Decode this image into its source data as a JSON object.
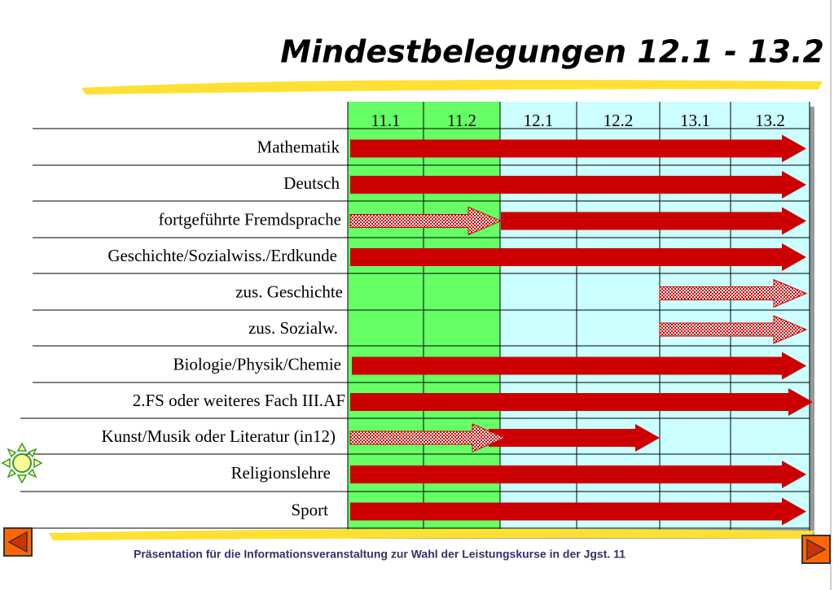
{
  "title": "Mindestbelegungen 12.1 - 13.2",
  "columns": [
    "11.1",
    "11.2",
    "12.1",
    "12.2",
    "13.1",
    "13.2"
  ],
  "rows": [
    "Mathematik",
    "Deutsch",
    "fortgeführte Fremdsprache",
    "Geschichte/Sozialwiss./Erdkunde",
    "zus. Geschichte",
    "zus. Sozialw.",
    "Biologie/Physik/Chemie",
    "2.FS oder weiteres Fach III.AF",
    "Kunst/Musik oder Literatur (in12)",
    "Religionslehre",
    "Sport"
  ],
  "footer": "Präsentation für die Informationsveranstaltung zur Wahl der Leistungskurse in der Jgst. 11"
}
